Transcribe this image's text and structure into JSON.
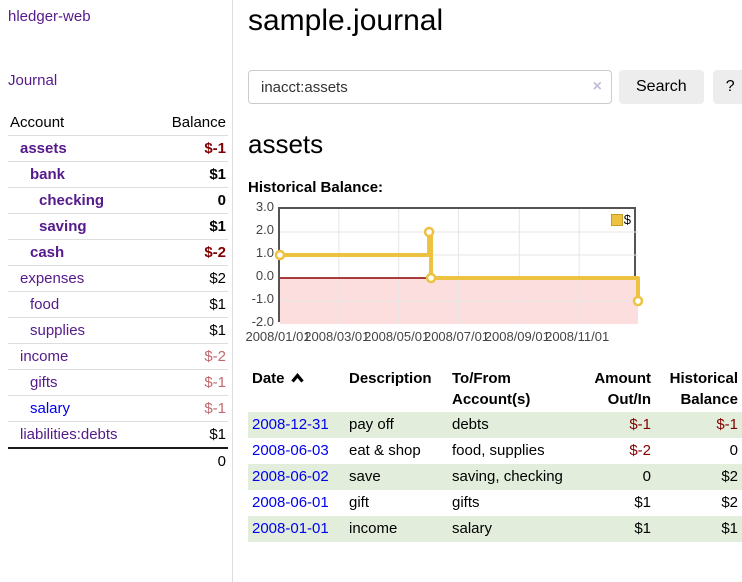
{
  "app": {
    "brand": "hledger-web",
    "nav": {
      "journal": "Journal"
    }
  },
  "sidebar": {
    "headers": {
      "account": "Account",
      "balance": "Balance"
    },
    "rows": [
      {
        "name": "assets",
        "balance": "$-1"
      },
      {
        "name": "bank",
        "balance": "$1"
      },
      {
        "name": "checking",
        "balance": "0"
      },
      {
        "name": "saving",
        "balance": "$1"
      },
      {
        "name": "cash",
        "balance": "$-2"
      },
      {
        "name": "expenses",
        "balance": "$2"
      },
      {
        "name": "food",
        "balance": "$1"
      },
      {
        "name": "supplies",
        "balance": "$1"
      },
      {
        "name": "income",
        "balance": "$-2"
      },
      {
        "name": "gifts",
        "balance": "$-1"
      },
      {
        "name": "salary",
        "balance": "$-1"
      },
      {
        "name": "liabilities:debts",
        "balance": "$1"
      }
    ],
    "total": "0"
  },
  "header": {
    "title": "sample.journal"
  },
  "search": {
    "value": "inacct:assets",
    "clear_icon": "×",
    "search_button": "Search",
    "help_button": "?"
  },
  "account_view": {
    "heading": "assets",
    "chart_title": "Historical Balance:"
  },
  "chart_data": {
    "type": "line",
    "title": "Historical Balance",
    "series": [
      {
        "name": "$",
        "color": "#EDC240",
        "step": true,
        "points": [
          [
            "2008-01-01",
            1
          ],
          [
            "2008-06-01",
            2
          ],
          [
            "2008-06-03",
            0
          ],
          [
            "2008-12-31",
            -1
          ]
        ]
      }
    ],
    "x_range": [
      "2008-01-01",
      "2008-12-31"
    ],
    "ylim": [
      -2,
      3
    ],
    "y_tick_labels": [
      "3.0",
      "2.0",
      "1.0",
      "0.0",
      "-1.0",
      "-2.0"
    ],
    "x_ticks": [
      {
        "date": "2008-01-01",
        "label": "2008/01/01"
      },
      {
        "date": "2008-03-01",
        "label": "2008/03/01"
      },
      {
        "date": "2008-05-01",
        "label": "2008/05/01"
      },
      {
        "date": "2008-07-01",
        "label": "2008/07/01"
      },
      {
        "date": "2008-09-01",
        "label": "2008/09/01"
      },
      {
        "date": "2008-11-01",
        "label": "2008/11/01"
      }
    ],
    "grid_on": true,
    "grid_color": "#e6e6e6",
    "border_color": "#545454",
    "negative_region_color": "#fcdede",
    "zero_line_color": "#8b0000",
    "marker": {
      "fill": "#ffffff",
      "stroke": "#EDC240"
    },
    "legend": {
      "label": "$",
      "position": "top-right"
    }
  },
  "register": {
    "headers": {
      "date": "Date",
      "description": "Description",
      "tofrom_1": "To/From",
      "tofrom_2": "Account(s)",
      "amount_1": "Amount",
      "amount_2": "Out/In",
      "hist_1": "Historical",
      "hist_2": "Balance"
    },
    "rows": [
      {
        "date": "2008-12-31",
        "description": "pay off",
        "accounts": "debts",
        "amount": "$-1",
        "balance": "$-1"
      },
      {
        "date": "2008-06-03",
        "description": "eat & shop",
        "accounts": "food, supplies",
        "amount": "$-2",
        "balance": "0"
      },
      {
        "date": "2008-06-02",
        "description": "save",
        "accounts": "saving, checking",
        "amount": "0",
        "balance": "$2"
      },
      {
        "date": "2008-06-01",
        "description": "gift",
        "accounts": "gifts",
        "amount": "$1",
        "balance": "$2"
      },
      {
        "date": "2008-01-01",
        "description": "income",
        "accounts": "salary",
        "amount": "$1",
        "balance": "$1"
      }
    ]
  },
  "colors": {
    "link_purple": "#551A8B",
    "link_blue": "#0000EE",
    "negative_dark_red": "#800000",
    "negative_pale_red": "#bf696e",
    "row_stripe_green": "#e2eedb",
    "button_gray": "#ededed",
    "divider_gray": "#dddddd",
    "chart_line_gold": "#EDC240",
    "chart_negative_pink": "#fcdede",
    "chart_zero_line": "#8b0000"
  }
}
